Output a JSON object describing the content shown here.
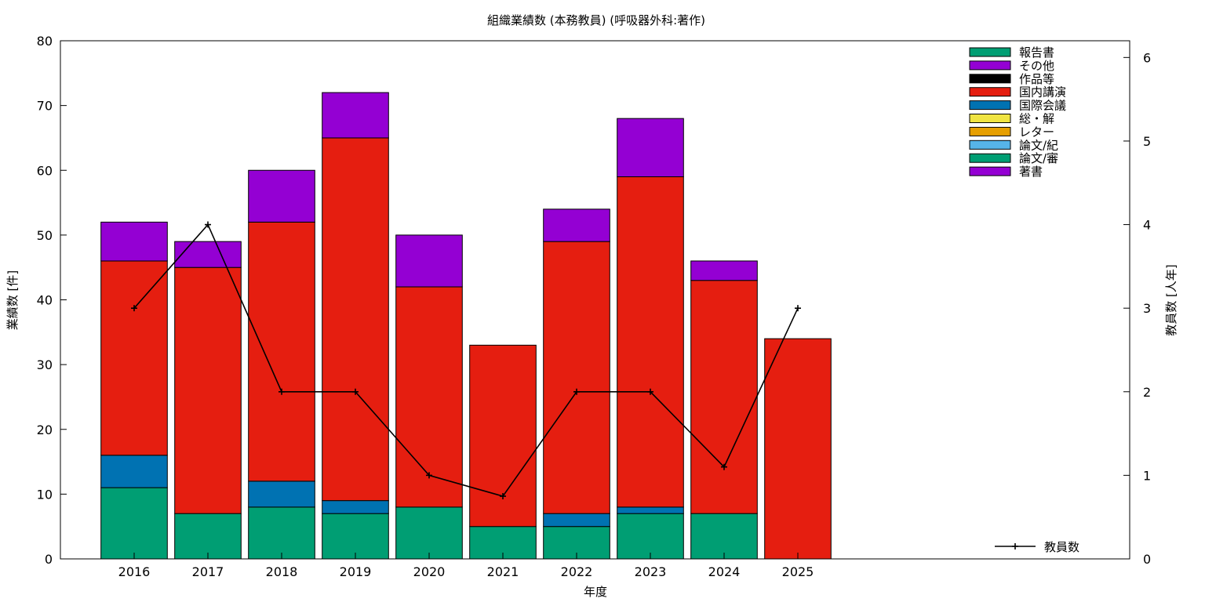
{
  "chart_data": {
    "type": "bar",
    "stacked": true,
    "title": "組織業績数 (本務教員) (呼吸器外科:著作)",
    "xlabel": "年度",
    "ylabel": "業績数 [件]",
    "y2label": "教員数 [人年]",
    "ylim": [
      0,
      80
    ],
    "y2lim": [
      0,
      6.2
    ],
    "yticks": [
      0,
      10,
      20,
      30,
      40,
      50,
      60,
      70,
      80
    ],
    "y2ticks": [
      0,
      1,
      2,
      3,
      4,
      5,
      6
    ],
    "categories": [
      "2016",
      "2017",
      "2018",
      "2019",
      "2020",
      "2021",
      "2022",
      "2023",
      "2024",
      "2025"
    ],
    "xlim": [
      2015,
      2029.5
    ],
    "grid": false,
    "legend_position": "top-right",
    "series": [
      {
        "name": "報告書",
        "color": "#009e73",
        "values": [
          0,
          0,
          0,
          0,
          0,
          0,
          0,
          0,
          0,
          0
        ]
      },
      {
        "name": "その他",
        "color": "#9400d3",
        "values": [
          0,
          0,
          0,
          0,
          0,
          0,
          0,
          0,
          0,
          0
        ]
      },
      {
        "name": "作品等",
        "color": "#000000",
        "values": [
          0,
          0,
          0,
          0,
          0,
          0,
          0,
          0,
          0,
          0
        ]
      },
      {
        "name": "国内講演",
        "color": "#e51e10",
        "values": [
          30,
          38,
          40,
          56,
          34,
          28,
          42,
          51,
          36,
          34
        ]
      },
      {
        "name": "国際会議",
        "color": "#0072b2",
        "values": [
          5,
          0,
          4,
          2,
          0,
          0,
          2,
          1,
          0,
          0
        ]
      },
      {
        "name": "総・解",
        "color": "#f0e442",
        "values": [
          0,
          0,
          0,
          0,
          0,
          0,
          0,
          0,
          0,
          0
        ]
      },
      {
        "name": "レター",
        "color": "#e69f00",
        "values": [
          0,
          0,
          0,
          0,
          0,
          0,
          0,
          0,
          0,
          0
        ]
      },
      {
        "name": "論文/紀",
        "color": "#56b4e9",
        "values": [
          0,
          0,
          0,
          0,
          0,
          0,
          0,
          0,
          0,
          0
        ]
      },
      {
        "name": "論文/審",
        "color": "#009e73",
        "values": [
          11,
          7,
          8,
          7,
          8,
          5,
          5,
          7,
          7,
          0
        ]
      },
      {
        "name": "著書",
        "color": "#9400d3",
        "values": [
          6,
          4,
          8,
          7,
          8,
          0,
          5,
          9,
          3,
          0
        ]
      }
    ],
    "stack_order": [
      "論文/審",
      "論文/紀",
      "レター",
      "総・解",
      "国際会議",
      "国内講演",
      "作品等",
      "その他",
      "報告書",
      "著書"
    ],
    "line_series": {
      "name": "教員数",
      "axis": "y2",
      "color": "#000000",
      "values": [
        3,
        4,
        2,
        2,
        1,
        0.75,
        2,
        2,
        1.1,
        3
      ]
    }
  }
}
